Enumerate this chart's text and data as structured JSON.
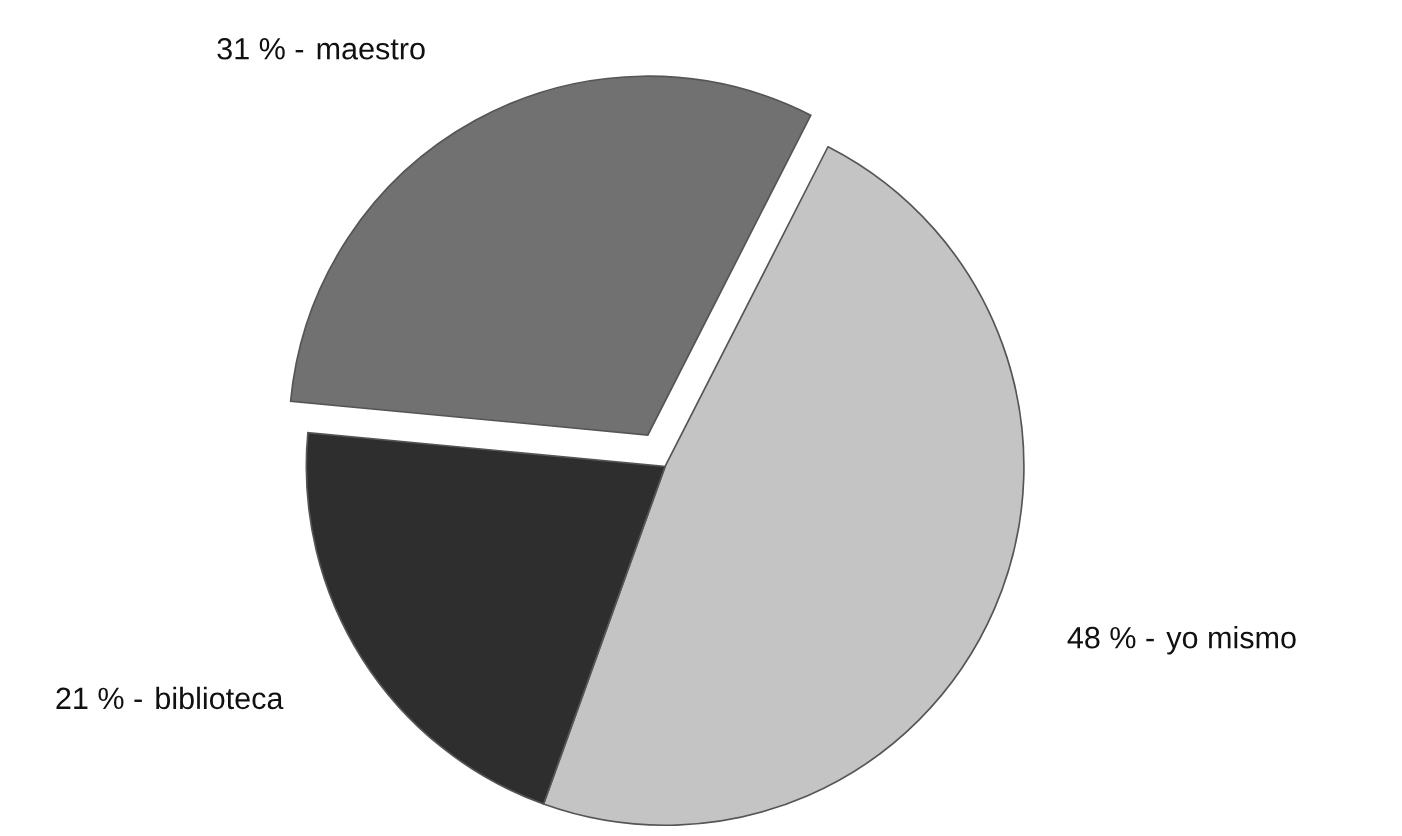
{
  "chart_data": {
    "type": "pie",
    "categories": [
      "yo mismo",
      "biblioteca",
      "maestro"
    ],
    "values": [
      48,
      21,
      31
    ],
    "colors": [
      "#c4c4c4",
      "#2e2e2e",
      "#717171"
    ],
    "value_labels": [
      "48 % -",
      "21 % -",
      "31 % -"
    ],
    "legend": false
  }
}
